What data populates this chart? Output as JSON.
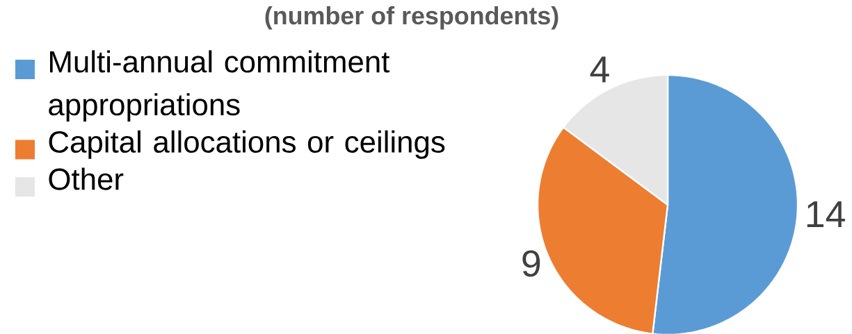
{
  "chart_data": {
    "type": "pie",
    "title": "(number of respondents)",
    "categories": [
      "Multi-annual commitment appropriations",
      "Capital allocations or ceilings",
      "Other"
    ],
    "values": [
      14,
      9,
      4
    ],
    "colors": [
      "#5b9bd5",
      "#ed7d31",
      "#e7e6e6"
    ],
    "data_labels": true,
    "legend": "left"
  }
}
